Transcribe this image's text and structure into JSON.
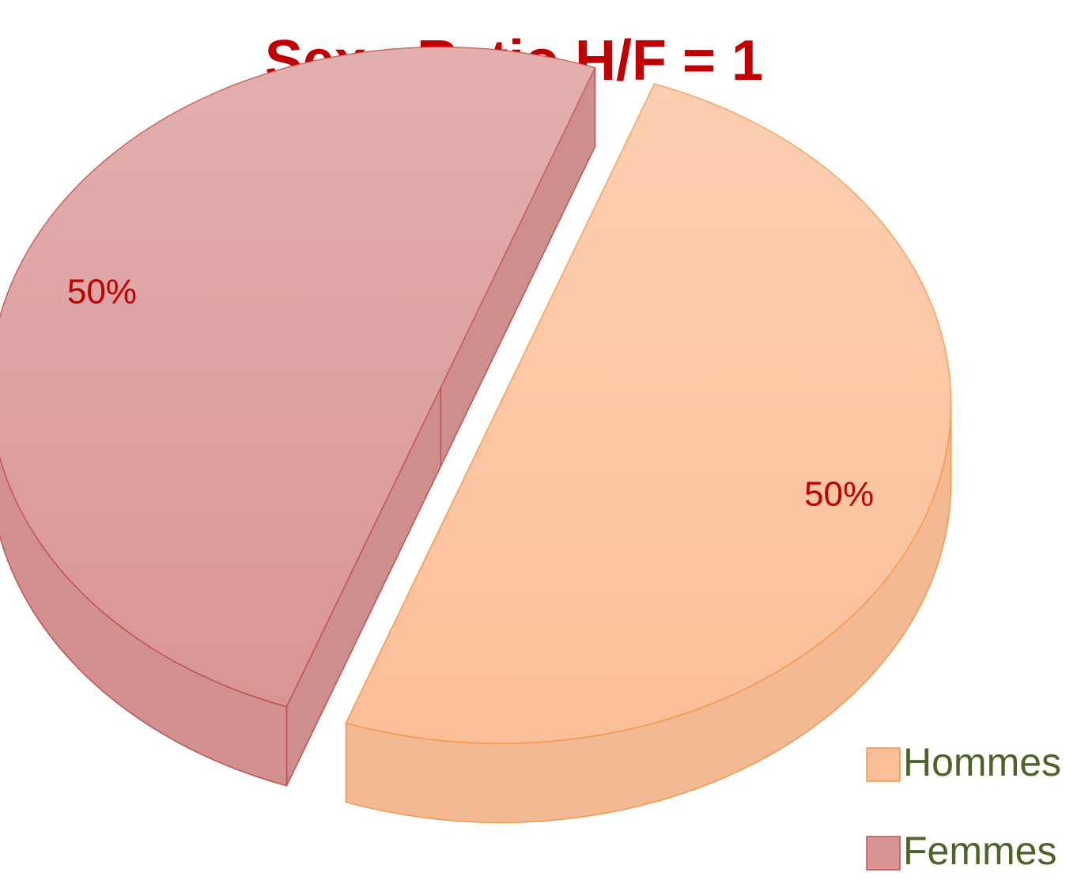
{
  "chart_data": {
    "type": "pie",
    "title": "Sex - Ratio H/F = 1",
    "categories": [
      "Hommes",
      "Femmes"
    ],
    "values": [
      50,
      50
    ],
    "value_labels": [
      "50%",
      "50%"
    ],
    "colors": [
      "#fbbf98",
      "#d99594"
    ],
    "legend": "bottom-right"
  }
}
